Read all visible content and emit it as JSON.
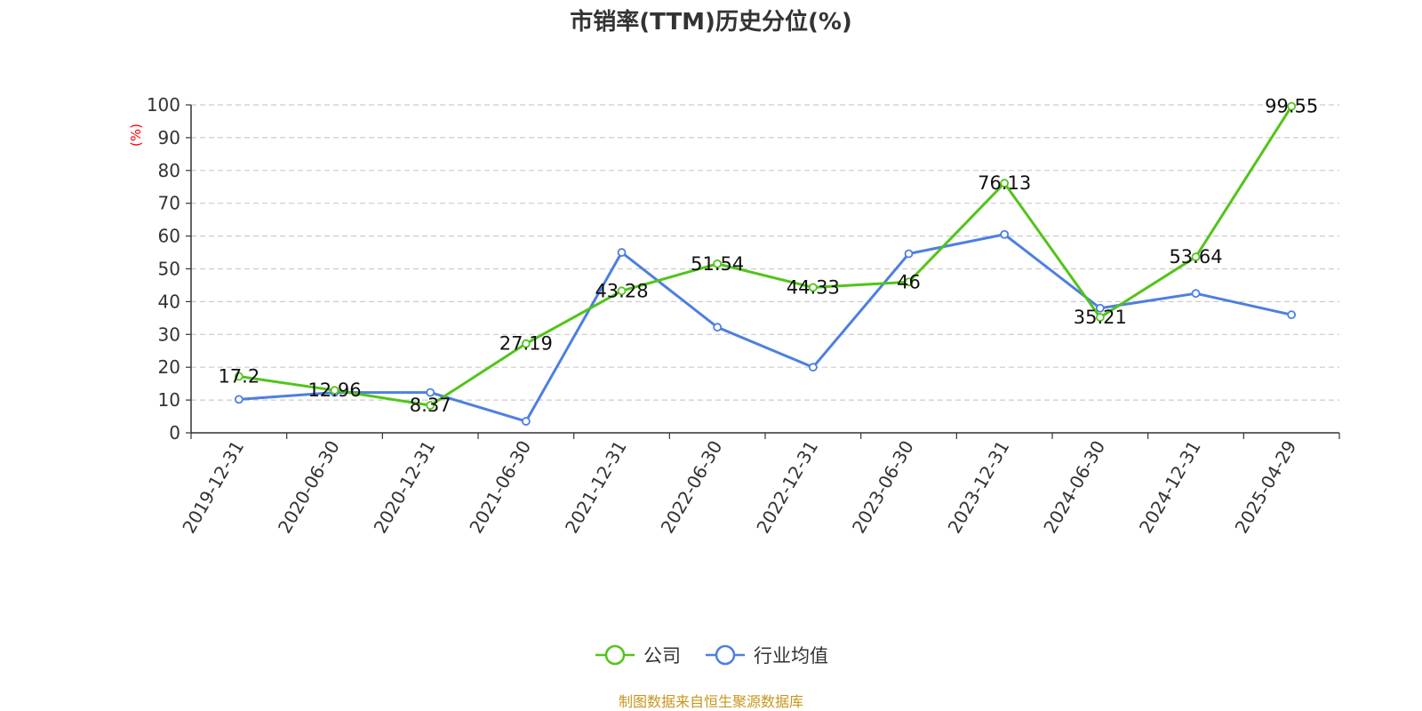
{
  "chart_data": {
    "type": "line",
    "title": "市销率(TTM)历史分位(%)",
    "ylabel": "(%)",
    "xlabel": "",
    "ylim": [
      0,
      100
    ],
    "yticks": [
      0,
      10,
      20,
      30,
      40,
      50,
      60,
      70,
      80,
      90,
      100
    ],
    "categories": [
      "2019-12-31",
      "2020-06-30",
      "2020-12-31",
      "2021-06-30",
      "2021-12-31",
      "2022-06-30",
      "2022-12-31",
      "2023-06-30",
      "2023-12-31",
      "2024-06-30",
      "2024-12-31",
      "2025-04-29"
    ],
    "grid": "horizontal dashed",
    "legend_position": "bottom-center",
    "series": [
      {
        "name": "公司",
        "color": "#52c41a",
        "values": [
          17.2,
          12.96,
          8.37,
          27.19,
          43.28,
          51.54,
          44.33,
          46,
          76.13,
          35.21,
          53.64,
          99.55
        ],
        "labels": [
          "17.2",
          "12.96",
          "8.37",
          "27.19",
          "43.28",
          "51.54",
          "44.33",
          "46",
          "76.13",
          "35.21",
          "53.64",
          "99.55"
        ]
      },
      {
        "name": "行业均值",
        "color": "#4e7fe0",
        "values": [
          10.2,
          12.3,
          12.3,
          3.5,
          55,
          32.2,
          20,
          54.6,
          60.5,
          38,
          42.5,
          36
        ]
      }
    ]
  },
  "footer": {
    "source": "制图数据来自恒生聚源数据库",
    "source_color": "#c8961e"
  },
  "axis_color": "#333333",
  "ylabel_color": "#ff0000"
}
